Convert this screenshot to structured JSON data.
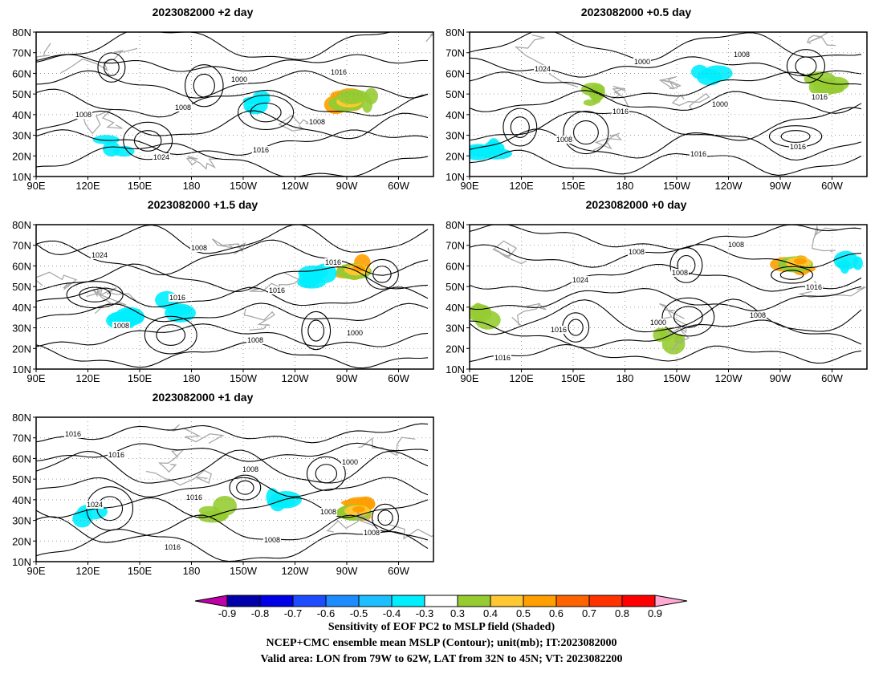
{
  "panels": [
    {
      "title": "2023082000  +2  day",
      "seed": 11,
      "labels": [
        "1008",
        "1016",
        "1016",
        "1008",
        "1024",
        "1000",
        "1008"
      ],
      "pos": [
        {
          "v": 0.2,
          "t": "cyan"
        },
        {
          "v": 0.55,
          "t": "cyan"
        },
        {
          "v": 0.78,
          "t": "orange"
        },
        {
          "v": 0.82,
          "t": "green"
        }
      ]
    },
    {
      "title": "2023082000  +0.5  day",
      "seed": 23,
      "labels": [
        "1008",
        "1016",
        "1008",
        "1000",
        "1000",
        "1016",
        "1024",
        "1016",
        "1016"
      ],
      "pos": [
        {
          "v": 0.05,
          "t": "cyan"
        },
        {
          "v": 0.3,
          "t": "green"
        },
        {
          "v": 0.6,
          "t": "cyan"
        },
        {
          "v": 0.9,
          "t": "green"
        }
      ]
    },
    {
      "title": "2023082000  +1.5  day",
      "seed": 37,
      "labels": [
        "1008",
        "1008",
        "1016",
        "1000",
        "1024",
        "1016",
        "1008",
        "1016"
      ],
      "pos": [
        {
          "v": 0.22,
          "t": "cyan"
        },
        {
          "v": 0.35,
          "t": "cyan"
        },
        {
          "v": 0.8,
          "t": "orange"
        },
        {
          "v": 0.7,
          "t": "cyan"
        }
      ]
    },
    {
      "title": "2023082000  +0  day",
      "seed": 49,
      "labels": [
        "1008",
        "1008",
        "1016",
        "1024",
        "1000",
        "1008",
        "1016",
        "1016",
        "1008"
      ],
      "pos": [
        {
          "v": 0.05,
          "t": "green"
        },
        {
          "v": 0.5,
          "t": "green"
        },
        {
          "v": 0.82,
          "t": "orange"
        },
        {
          "v": 0.95,
          "t": "cyan"
        }
      ]
    },
    {
      "title": "2023082000  +1  day",
      "seed": 61,
      "labels": [
        "1008",
        "1016",
        "1016",
        "1008",
        "1000",
        "1024",
        "1016",
        "1008",
        "1008",
        "1016"
      ],
      "pos": [
        {
          "v": 0.12,
          "t": "cyan"
        },
        {
          "v": 0.45,
          "t": "green"
        },
        {
          "v": 0.8,
          "t": "orange"
        },
        {
          "v": 0.6,
          "t": "cyan"
        }
      ]
    }
  ],
  "lat_ticks": [
    "80N",
    "70N",
    "60N",
    "50N",
    "40N",
    "30N",
    "20N",
    "10N"
  ],
  "lon_ticks": [
    "90E",
    "120E",
    "150E",
    "180",
    "150W",
    "120W",
    "90W",
    "60W"
  ],
  "colorbar": {
    "colors": [
      "#bf00aa",
      "#0000aa",
      "#0000e6",
      "#1d4cff",
      "#1c8cff",
      "#1cbfff",
      "#00eeff",
      "#ffffff",
      "#96cc32",
      "#ffc832",
      "#ffa000",
      "#ff6400",
      "#ff3200",
      "#ff0000",
      "#ffaad2"
    ],
    "tick_labels": [
      "-0.9",
      "-0.8",
      "-0.7",
      "-0.6",
      "-0.5",
      "-0.4",
      "-0.3",
      "0.3",
      "0.4",
      "0.5",
      "0.6",
      "0.7",
      "0.8",
      "0.9"
    ]
  },
  "footer": {
    "line1": "Sensitivity of EOF PC2 to MSLP field (Shaded)",
    "line2": "NCEP+CMC ensemble mean MSLP (Contour); unit(mb); IT:2023082000",
    "line3": "Valid area: LON from 79W to 62W, LAT from 32N to 45N; VT: 2023082200"
  }
}
